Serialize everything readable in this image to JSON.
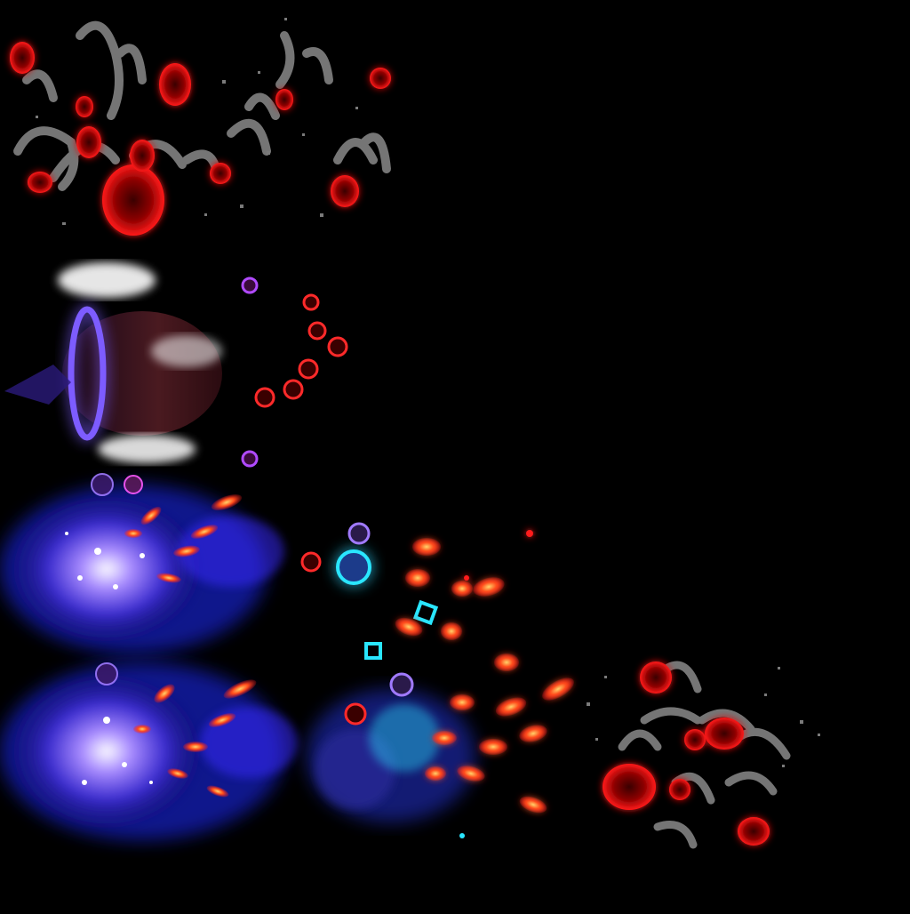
{
  "sprite_sheet": {
    "background_color": "#000000",
    "palette": {
      "blood_red": "#ff1a1a",
      "dark_blood": "#5a0a0a",
      "smoke_gray": "#8a8a8a",
      "violet": "#6a3cff",
      "electric_blue": "#2a3cff",
      "cyan": "#29e6ff",
      "ember_orange": "#ff6a2a",
      "white_mist": "#ffffff",
      "deep_maroon": "#3a0f12"
    },
    "frames": [
      {
        "name": "blood-splatter-burst",
        "icon": "blood-splatter-icon"
      },
      {
        "name": "portal-projectile",
        "icon": "portal-icon"
      },
      {
        "name": "blood-droplet-trail",
        "icon": "droplet-icon"
      },
      {
        "name": "arcane-explosion-1",
        "icon": "explosion-icon"
      },
      {
        "name": "arcane-explosion-2",
        "icon": "explosion-icon"
      },
      {
        "name": "cyan-spark-cluster",
        "icon": "spark-icon"
      },
      {
        "name": "ember-shard-scatter",
        "icon": "ember-icon"
      },
      {
        "name": "blood-splatter-small",
        "icon": "blood-splatter-icon"
      }
    ]
  }
}
